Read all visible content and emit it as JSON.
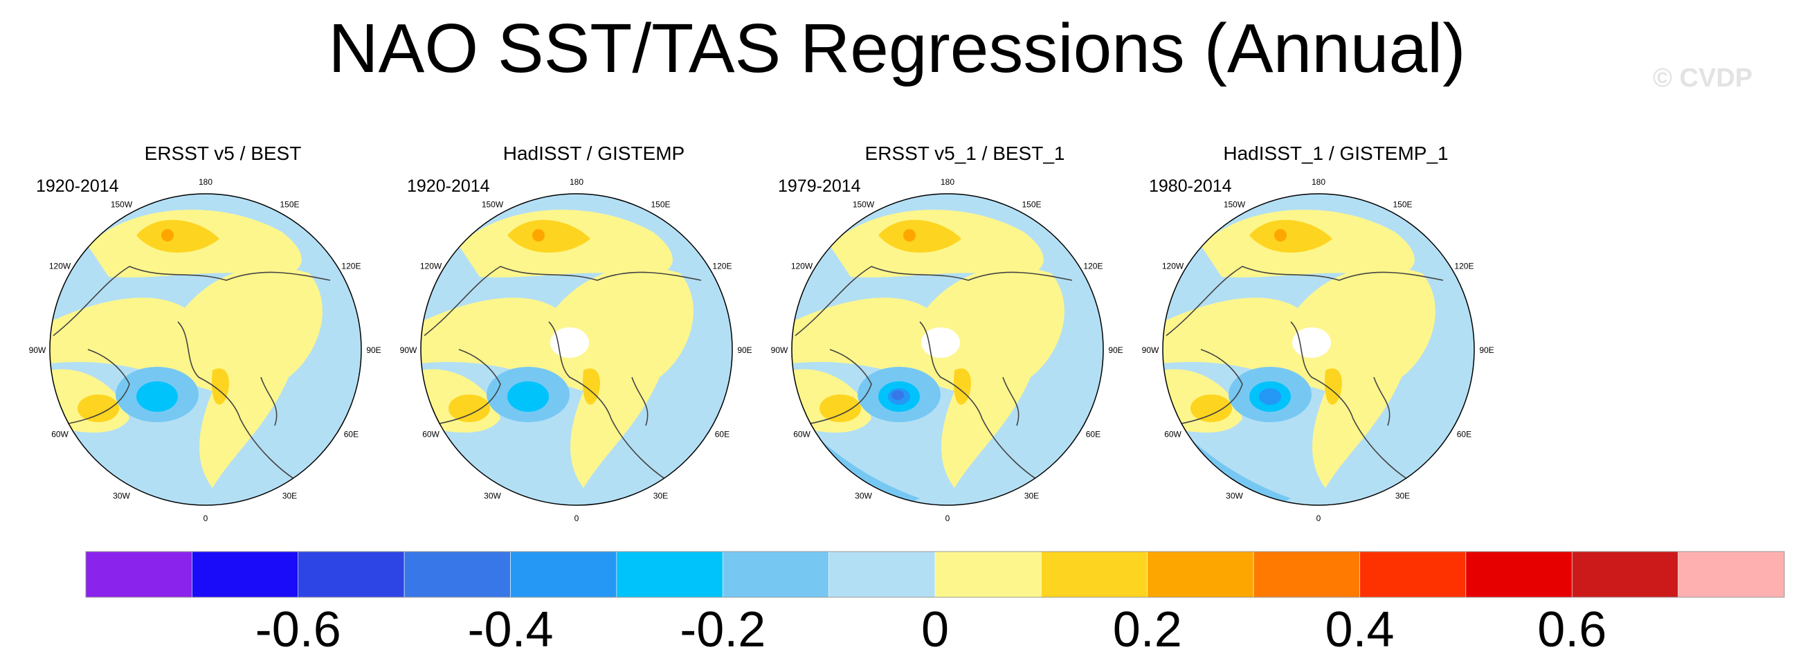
{
  "title": "NAO SST/TAS Regressions (Annual)",
  "copyright": "© CVDP",
  "panels": [
    {
      "title": "ERSST v5 / BEST",
      "years": "1920-2014"
    },
    {
      "title": "HadISST / GISTEMP",
      "years": "1920-2014"
    },
    {
      "title": "ERSST v5_1 / BEST_1",
      "years": "1979-2014"
    },
    {
      "title": "HadISST_1 / GISTEMP_1",
      "years": "1980-2014"
    }
  ],
  "longitude_labels": [
    "180",
    "150E",
    "120E",
    "90E",
    "60E",
    "30E",
    "0",
    "30W",
    "60W",
    "90W",
    "120W",
    "150W"
  ],
  "colorbar": {
    "colors": [
      "#8a23ec",
      "#1a0bf9",
      "#2e45e6",
      "#3777e8",
      "#2597f5",
      "#00c3fc",
      "#76c8f3",
      "#b3dff4",
      "#fdf68c",
      "#fdd41f",
      "#fea600",
      "#fe7a00",
      "#fe3200",
      "#e60000",
      "#cc1a1a",
      "#feb0b0"
    ],
    "labels": [
      "-0.6",
      "-0.4",
      "-0.2",
      "0",
      "0.2",
      "0.4",
      "0.6"
    ]
  }
}
